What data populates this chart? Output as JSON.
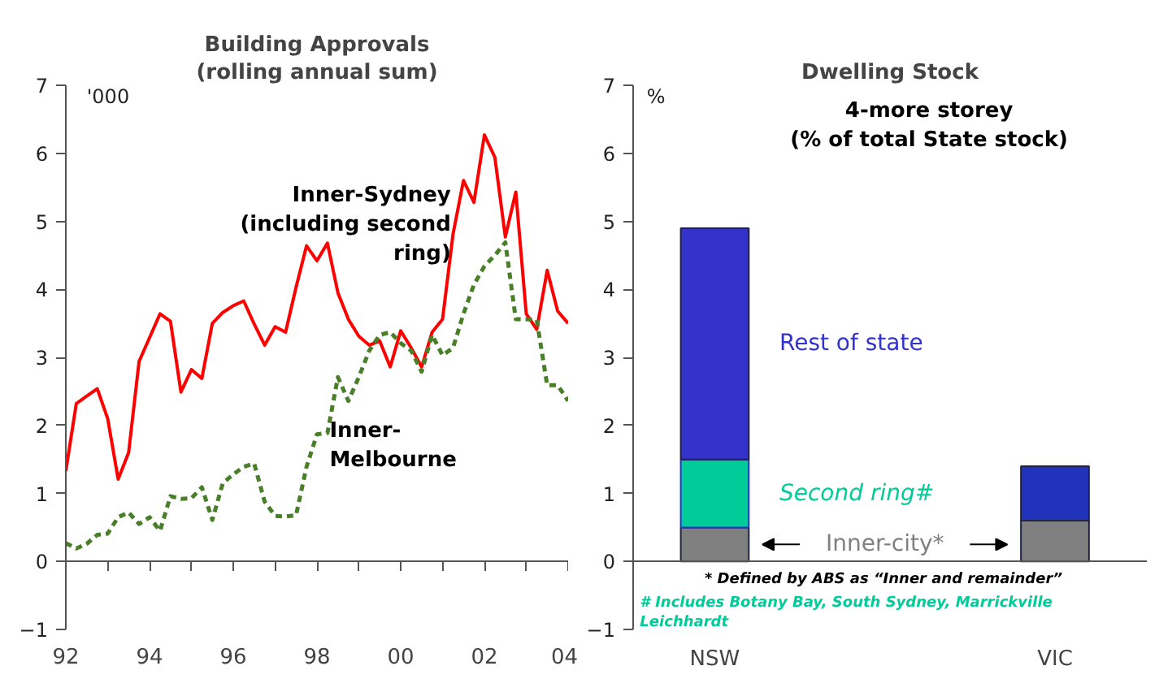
{
  "chart_data": [
    {
      "type": "line",
      "title": "Building Approvals",
      "subtitle": "(rolling annual sum)",
      "ylabel": "'000",
      "x": [
        1992,
        1992.25,
        1992.5,
        1992.75,
        1993,
        1993.25,
        1993.5,
        1993.75,
        1994,
        1994.25,
        1994.5,
        1994.75,
        1995,
        1995.25,
        1995.5,
        1995.75,
        1996,
        1996.25,
        1996.5,
        1996.75,
        1997,
        1997.25,
        1997.5,
        1997.75,
        1998,
        1998.25,
        1998.5,
        1998.75,
        1999,
        1999.25,
        1999.5,
        1999.75,
        2000,
        2000.25,
        2000.5,
        2000.75,
        2001,
        2001.25,
        2001.5,
        2001.75,
        2002,
        2002.25,
        2002.5,
        2002.75,
        2003,
        2003.25,
        2003.5,
        2003.75,
        2004
      ],
      "series": [
        {
          "name": "Inner-Sydney\n(including second\nring)",
          "color": "#ff0000",
          "line_style": "solid",
          "values": [
            1.33,
            2.32,
            2.43,
            2.54,
            2.1,
            1.21,
            1.6,
            2.94,
            3.29,
            3.64,
            3.53,
            2.49,
            2.82,
            2.69,
            3.5,
            3.66,
            3.76,
            3.83,
            3.49,
            3.18,
            3.45,
            3.37,
            4.03,
            4.64,
            4.42,
            4.68,
            3.95,
            3.56,
            3.31,
            3.18,
            3.24,
            2.86,
            3.39,
            3.14,
            2.86,
            3.37,
            3.56,
            4.81,
            5.6,
            5.28,
            6.27,
            5.94,
            4.77,
            5.43,
            3.64,
            3.41,
            4.28,
            3.68,
            3.5
          ]
        },
        {
          "name": "Inner-\nMelbourne",
          "color": "#4a7f2a",
          "line_style": "dashed",
          "values": [
            0.27,
            0.19,
            0.26,
            0.39,
            0.41,
            0.65,
            0.72,
            0.55,
            0.65,
            0.45,
            0.96,
            0.92,
            0.93,
            1.09,
            0.61,
            1.15,
            1.28,
            1.39,
            1.44,
            0.88,
            0.67,
            0.66,
            0.68,
            1.39,
            1.87,
            1.89,
            2.71,
            2.36,
            2.71,
            3.1,
            3.33,
            3.37,
            3.21,
            3.1,
            2.79,
            3.33,
            3.03,
            3.14,
            3.64,
            4.07,
            4.34,
            4.5,
            4.69,
            3.56,
            3.56,
            3.55,
            2.59,
            2.59,
            2.36
          ]
        }
      ],
      "xlim": [
        1992,
        2004
      ],
      "xticks": [
        {
          "value": 1992,
          "label": "92"
        },
        {
          "value": 1993,
          "label": null
        },
        {
          "value": 1994,
          "label": "94"
        },
        {
          "value": 1995,
          "label": null
        },
        {
          "value": 1996,
          "label": "96"
        },
        {
          "value": 1997,
          "label": null
        },
        {
          "value": 1998,
          "label": "98"
        },
        {
          "value": 1999,
          "label": null
        },
        {
          "value": 2000,
          "label": "00"
        },
        {
          "value": 2001,
          "label": null
        },
        {
          "value": 2002,
          "label": "02"
        },
        {
          "value": 2003,
          "label": null
        },
        {
          "value": 2004,
          "label": "04"
        }
      ],
      "ylim": [
        -1,
        7
      ],
      "yticks": [
        -1,
        0,
        1,
        2,
        3,
        4,
        5,
        6,
        7
      ]
    },
    {
      "type": "bar",
      "stacked": true,
      "title": "Dwelling Stock",
      "subtitle": "4-more storey\n(% of total State stock)",
      "ylabel": "%",
      "categories": [
        "NSW",
        "VIC"
      ],
      "series": [
        {
          "name": "Inner-city*",
          "color": "#808080",
          "values": [
            0.5,
            0.6
          ]
        },
        {
          "name": "Second ring#",
          "color": "#00cc99",
          "values": [
            1.0,
            null
          ]
        },
        {
          "name": "Rest of state",
          "color": "#3333cc",
          "colors": [
            "#3333cc",
            "#2233bb"
          ],
          "values": [
            3.4,
            0.8
          ]
        }
      ],
      "ylim": [
        -1,
        7
      ],
      "yticks": [
        -1,
        0,
        1,
        2,
        3,
        4,
        5,
        6,
        7
      ],
      "annotations": [
        "* Defined by ABS as “Inner and remainder”",
        "# Includes Botany Bay, South Sydney, Marrickville\nLeichhardt"
      ]
    }
  ]
}
